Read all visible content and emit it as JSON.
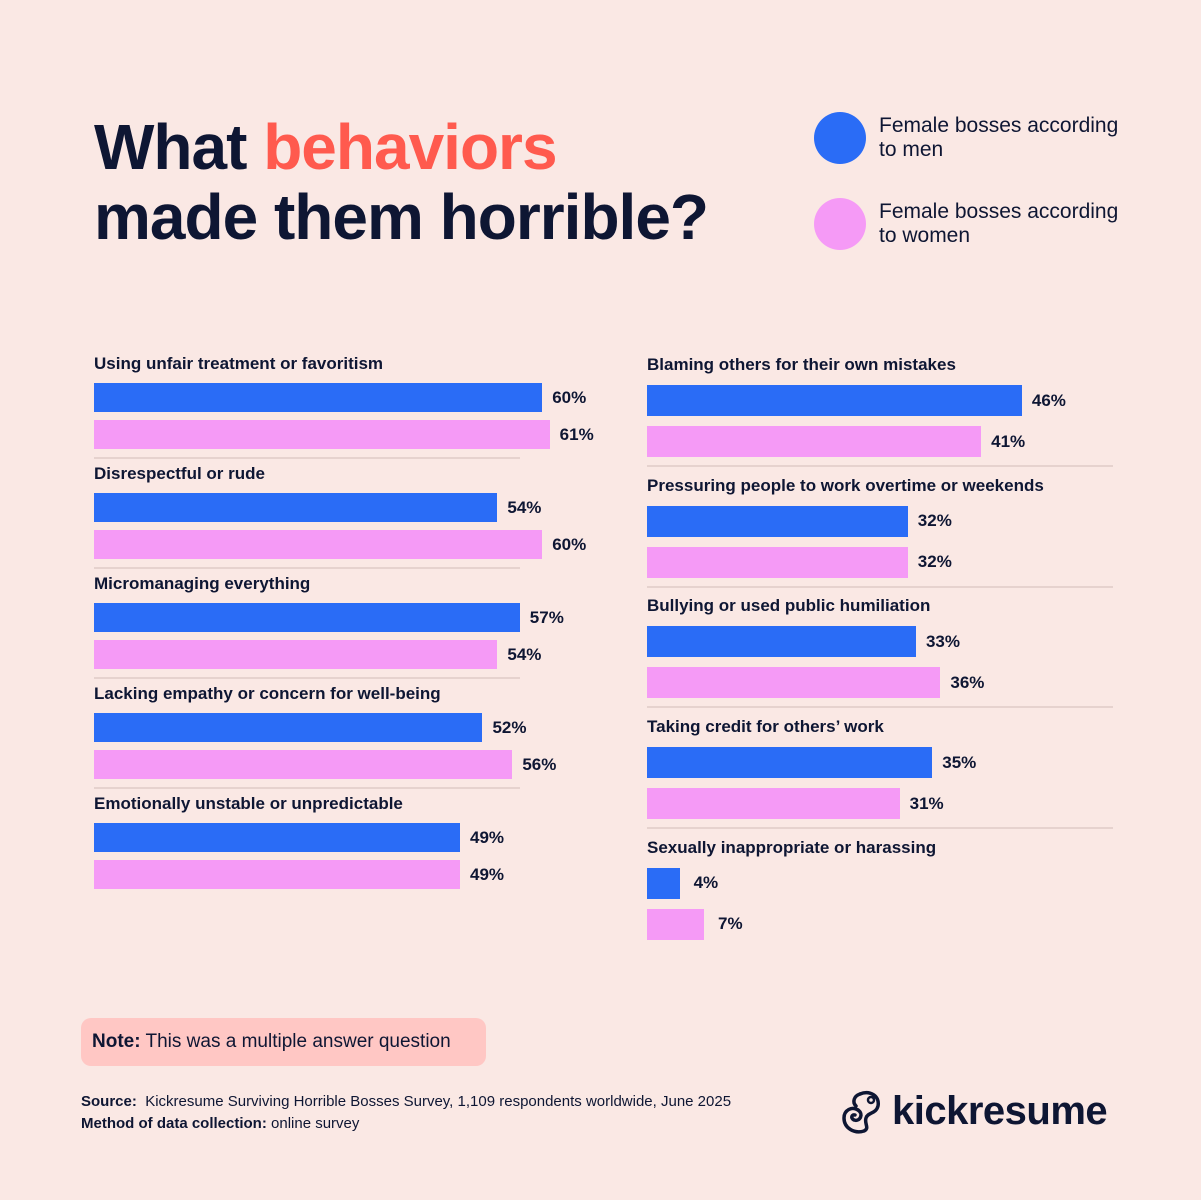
{
  "title": {
    "part1": "What ",
    "highlight": "behaviors",
    "part2": "made them horrible?"
  },
  "legend": [
    {
      "label": "Female bosses according to men",
      "color": "#2A6CF6"
    },
    {
      "label": "Female bosses according to women",
      "color": "#F59AF6"
    }
  ],
  "colors": {
    "background": "#FAE8E4",
    "text": "#0E1633",
    "highlight": "#FF5A4E",
    "note_bg": "#FFC7C4"
  },
  "chart_data": {
    "type": "bar",
    "orientation": "horizontal",
    "unit": "%",
    "categories": [
      "Using unfair treatment or favoritism",
      "Disrespectful or rude",
      "Micromanaging everything",
      "Lacking empathy or concern for well-being",
      "Emotionally unstable or unpredictable",
      "Blaming others for their own mistakes",
      "Pressuring people to work overtime or weekends",
      "Bullying or used public humiliation",
      "Taking credit for others’ work",
      "Sexually inappropriate or harassing"
    ],
    "series": [
      {
        "name": "Female bosses according to men",
        "values": [
          60,
          54,
          57,
          52,
          49,
          46,
          32,
          33,
          35,
          4
        ]
      },
      {
        "name": "Female bosses according to women",
        "values": [
          61,
          60,
          54,
          56,
          49,
          41,
          32,
          36,
          31,
          7
        ]
      }
    ],
    "value_labels": [
      [
        "60%",
        "54%",
        "57%",
        "52%",
        "49%",
        "46%",
        "32%",
        "33%",
        "35%",
        "4%"
      ],
      [
        "61%",
        "60%",
        "54%",
        "56%",
        "49%",
        "41%",
        "32%",
        "36%",
        "31%",
        "7%"
      ]
    ]
  },
  "note": {
    "label": "Note:",
    "text": " This was a multiple answer question"
  },
  "source": {
    "label": "Source:",
    "text": "  Kickresume Surviving Horrible Bosses Survey, 1,109 respondents worldwide, June 2025",
    "method_label": "Method of data collection:",
    "method_text": " online survey"
  },
  "logo": {
    "text": "kickresume"
  }
}
